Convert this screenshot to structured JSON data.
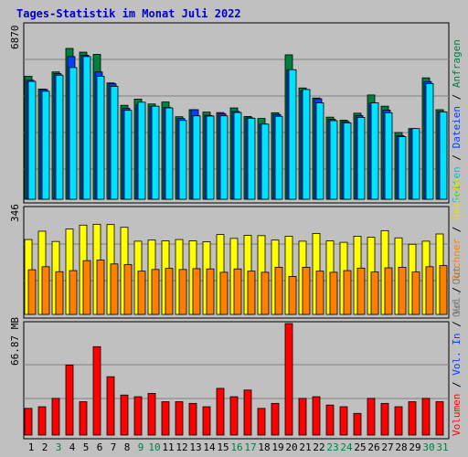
{
  "title": "Tages-Statistik im Monat Juli 2022",
  "colors": {
    "background": "#c0c0c0",
    "title": "#0000c0",
    "anfragen": "#008040",
    "dateien": "#0040ff",
    "seiten": "#00e0ff",
    "besuche": "#ffff00",
    "rechner": "#ff8000",
    "volumen": "#ff0000",
    "weekend_label": "#008040"
  },
  "chart_data": [
    {
      "type": "bar",
      "panel": "hits",
      "scale_label": "6870",
      "categories": [
        "1",
        "2",
        "3",
        "4",
        "5",
        "6",
        "7",
        "8",
        "9",
        "10",
        "11",
        "12",
        "13",
        "14",
        "15",
        "16",
        "17",
        "18",
        "19",
        "20",
        "21",
        "22",
        "23",
        "24",
        "25",
        "26",
        "27",
        "28",
        "29",
        "30",
        "31"
      ],
      "weekend_days": [
        "3",
        "9",
        "10",
        "16",
        "17",
        "23",
        "24",
        "30",
        "31"
      ],
      "ylim": [
        0,
        6870
      ],
      "legend": [
        {
          "key": "anfragen",
          "label": "Anfragen"
        },
        {
          "key": "dateien",
          "label": "Dateien"
        },
        {
          "key": "seiten",
          "label": "Seiten"
        }
      ],
      "series": [
        {
          "name": "Anfragen",
          "values": [
            5600,
            5020,
            5800,
            6870,
            6700,
            6600,
            5300,
            4280,
            4560,
            4340,
            4430,
            3760,
            4080,
            3970,
            3950,
            4160,
            3770,
            3680,
            3940,
            6580,
            5070,
            4610,
            3740,
            3600,
            3920,
            4750,
            4240,
            3040,
            3220,
            5530,
            4080
          ]
        },
        {
          "name": "Dateien",
          "values": [
            5420,
            5000,
            5720,
            6500,
            6560,
            5800,
            5260,
            4140,
            4300,
            4220,
            4180,
            3680,
            4080,
            3820,
            3900,
            4000,
            3710,
            3430,
            3860,
            5900,
            4950,
            4580,
            3640,
            3540,
            3810,
            4380,
            4060,
            2900,
            3200,
            5360,
            3990
          ]
        },
        {
          "name": "Seiten",
          "values": [
            5370,
            4920,
            5650,
            6000,
            6500,
            5600,
            5140,
            4050,
            4420,
            4240,
            4160,
            3590,
            3800,
            3790,
            3800,
            3950,
            3690,
            3420,
            3780,
            5900,
            5000,
            4390,
            3580,
            3480,
            3730,
            4390,
            3940,
            2850,
            3220,
            5270,
            3980
          ]
        }
      ]
    },
    {
      "type": "bar",
      "panel": "visits",
      "scale_label": "346",
      "categories": [
        "1",
        "2",
        "3",
        "4",
        "5",
        "6",
        "7",
        "8",
        "9",
        "10",
        "11",
        "12",
        "13",
        "14",
        "15",
        "16",
        "17",
        "18",
        "19",
        "20",
        "21",
        "22",
        "23",
        "24",
        "25",
        "26",
        "27",
        "28",
        "29",
        "30",
        "31"
      ],
      "ylim": [
        0,
        346
      ],
      "legend": [
        {
          "key": "besuche",
          "label": "Besuche"
        },
        {
          "key": "rechner",
          "label": "Rechner"
        },
        {
          "key": "out",
          "label": "Out"
        }
      ],
      "series": [
        {
          "name": "Besuche",
          "values": [
            270,
            300,
            263,
            308,
            322,
            325,
            324,
            314,
            264,
            268,
            265,
            270,
            265,
            262,
            288,
            274,
            285,
            284,
            268,
            282,
            264,
            292,
            265,
            260,
            282,
            278,
            302,
            276,
            253,
            264,
            290
          ]
        },
        {
          "name": "Rechner",
          "values": [
            161,
            172,
            154,
            158,
            194,
            196,
            182,
            180,
            156,
            162,
            166,
            162,
            165,
            164,
            152,
            164,
            156,
            152,
            170,
            137,
            170,
            156,
            152,
            158,
            167,
            153,
            168,
            170,
            153,
            172,
            176
          ]
        }
      ]
    },
    {
      "type": "bar",
      "panel": "volume",
      "scale_label": "66.87 MB",
      "categories": [
        "1",
        "2",
        "3",
        "4",
        "5",
        "6",
        "7",
        "8",
        "9",
        "10",
        "11",
        "12",
        "13",
        "14",
        "15",
        "16",
        "17",
        "18",
        "19",
        "20",
        "21",
        "22",
        "23",
        "24",
        "25",
        "26",
        "27",
        "28",
        "29",
        "30",
        "31"
      ],
      "ylim": [
        0,
        66.87
      ],
      "legend": [
        {
          "key": "volumen",
          "label": "Volumen"
        },
        {
          "key": "in",
          "label": "Vol. In"
        },
        {
          "key": "out",
          "label": "Vol. Out"
        }
      ],
      "series": [
        {
          "name": "Volumen",
          "values": [
            16,
            17,
            22,
            42,
            20,
            53,
            35,
            24,
            23,
            25,
            20,
            20,
            19,
            17,
            28,
            23,
            27,
            16,
            19,
            66.87,
            22,
            23,
            18,
            17,
            13,
            22,
            19,
            17,
            20,
            22,
            20
          ]
        }
      ]
    }
  ],
  "side_labels": {
    "anfragen": "Anfragen",
    "dateien": "Dateien",
    "seiten": "Seiten",
    "besuche": "Besuche",
    "rechner": "Rechner",
    "out": "Out",
    "vol_out": "Vol. Out",
    "vol_in": "Vol. In",
    "volumen": "Volumen",
    "separator": " / "
  }
}
